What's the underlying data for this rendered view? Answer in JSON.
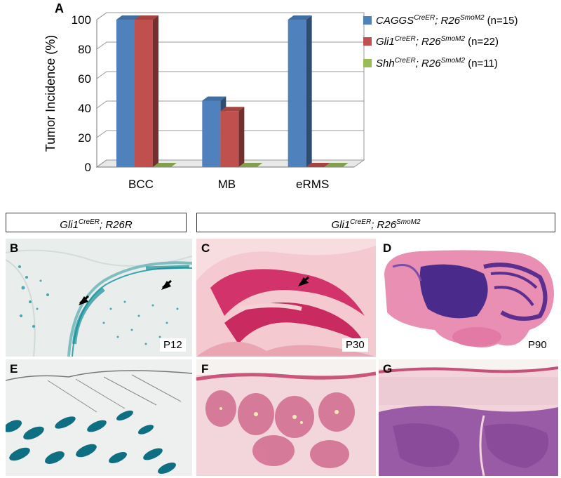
{
  "panel_a_letter": "A",
  "chart_data": {
    "type": "bar",
    "categories": [
      "BCC",
      "MB",
      "eRMS"
    ],
    "series": [
      {
        "name": "CAGGS^CreER; R26^SmoM2 (n=15)",
        "base": "CAGGS",
        "sup1": "CreER",
        "mid": "; R26",
        "sup2": "SmoM2",
        "n": "(n=15)",
        "values": [
          100,
          45,
          100
        ],
        "color": "#4f81bd"
      },
      {
        "name": "Gli1^CreER; R26^SmoM2 (n=22)",
        "base": "Gli1",
        "sup1": "CreER",
        "mid": "; R26",
        "sup2": "SmoM2",
        "n": "(n=22)",
        "values": [
          100,
          38,
          0
        ],
        "color": "#c0504d"
      },
      {
        "name": "Shh^CreER; R26^SmoM2 (n=11)",
        "base": "Shh",
        "sup1": "CreER",
        "mid": "; R26",
        "sup2": "SmoM2",
        "n": "(n=11)",
        "values": [
          0,
          0,
          0
        ],
        "color": "#9bbb59"
      }
    ],
    "ylabel": "Tumor Incidence (%)",
    "ylim": [
      0,
      100
    ],
    "yticks": [
      "0",
      "20",
      "40",
      "60",
      "80",
      "100"
    ],
    "grid": true,
    "legend": "right"
  },
  "headers": {
    "left": {
      "base": "Gli1",
      "sup": "CreER",
      "rest": "; R26R"
    },
    "right": {
      "base": "Gli1",
      "sup1": "CreER",
      "mid": "; R26",
      "sup2": "SmoM2"
    }
  },
  "panels": {
    "B": "B",
    "C": "C",
    "D": "D",
    "E": "E",
    "F": "F",
    "G": "G",
    "p12": "P12",
    "p30": "P30",
    "p90": "P90"
  }
}
